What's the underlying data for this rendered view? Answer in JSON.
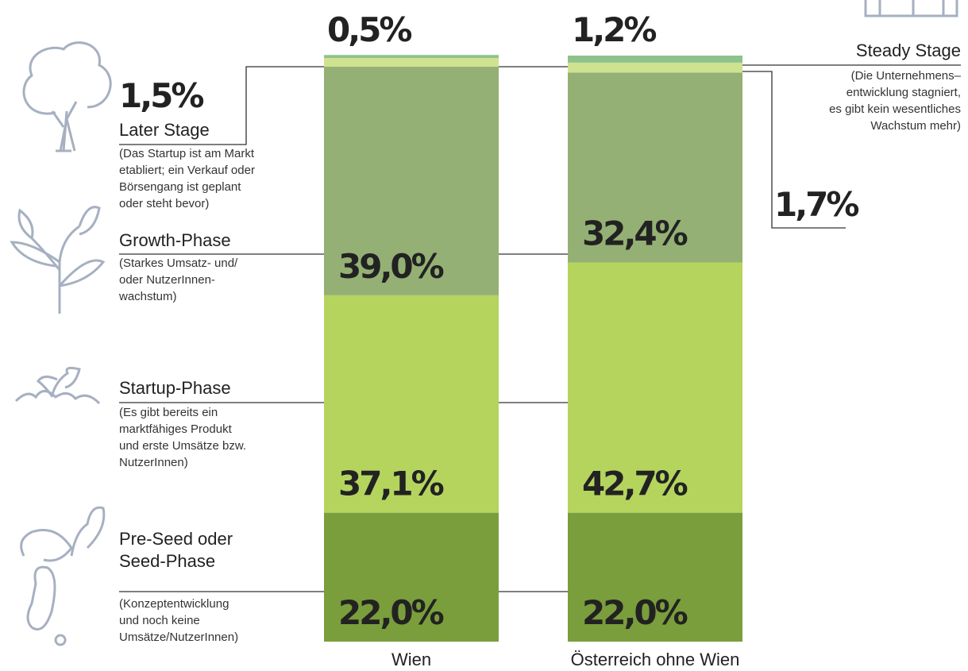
{
  "chart_data": {
    "type": "stacked_bar",
    "categories": [
      "Wien",
      "Österreich ohne Wien"
    ],
    "series": [
      {
        "name": "Pre-Seed oder Seed-Phase",
        "color": "#7a9e3b",
        "values": [
          22.0,
          22.0
        ],
        "value_labels": [
          "22,0%",
          "22,0%"
        ],
        "description": [
          "(Konzeptentwicklung",
          "und noch keine",
          "Umsätze/NutzerInnen)"
        ]
      },
      {
        "name": "Startup-Phase",
        "color": "#b5d45e",
        "values": [
          37.1,
          42.7
        ],
        "value_labels": [
          "37,1%",
          "42,7%"
        ],
        "description": [
          "(Es gibt bereits ein",
          "marktfähiges Produkt",
          "und erste Umsätze bzw.",
          "NutzerInnen)"
        ]
      },
      {
        "name": "Growth-Phase",
        "color": "#94b074",
        "values": [
          39.0,
          32.4
        ],
        "value_labels": [
          "39,0%",
          "32,4%"
        ],
        "description": [
          "(Starkes Umsatz- und/",
          "oder NutzerInnen-",
          "wachstum)"
        ]
      },
      {
        "name": "Later Stage",
        "color": "#cfe290",
        "values": [
          1.5,
          1.7
        ],
        "value_labels": [
          "1,5%",
          "1,7%"
        ],
        "description": [
          "(Das Startup ist am Markt",
          "etabliert; ein Verkauf oder",
          "Börsengang ist geplant",
          "oder steht bevor)"
        ]
      },
      {
        "name": "Steady Stage",
        "color": "#8dc28b",
        "values": [
          0.5,
          1.2
        ],
        "value_labels": [
          "0,5%",
          "1,2%"
        ],
        "description": [
          "(Die Unternehmens–",
          "entwicklung stagniert,",
          "es gibt kein wesentliches",
          "Wachstum mehr)"
        ]
      }
    ],
    "ylim": [
      0,
      100
    ]
  }
}
